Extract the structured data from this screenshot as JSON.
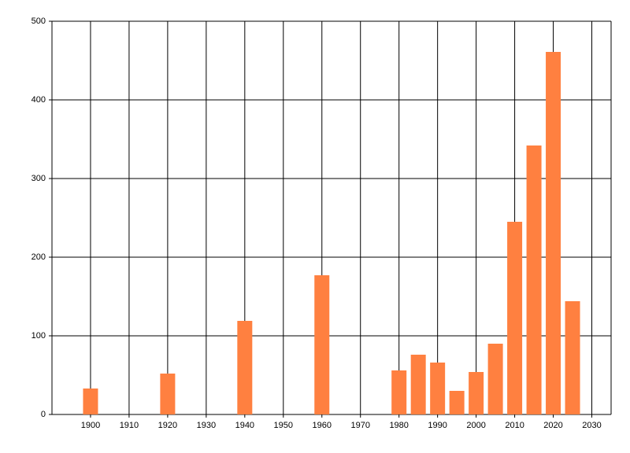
{
  "chart_data": {
    "type": "bar",
    "x": [
      1900,
      1920,
      1940,
      1960,
      1980,
      1985,
      1990,
      1995,
      2000,
      2005,
      2010,
      2015,
      2020,
      2025
    ],
    "values": [
      33,
      52,
      119,
      177,
      56,
      76,
      66,
      30,
      54,
      90,
      245,
      342,
      461,
      144
    ],
    "color": "#ff8040",
    "xlim": [
      1890,
      2035
    ],
    "xticks": [
      1900,
      1910,
      1920,
      1930,
      1940,
      1950,
      1960,
      1970,
      1980,
      1990,
      2000,
      2010,
      2020,
      2030
    ],
    "ylim": [
      0,
      500
    ],
    "yticks": [
      0,
      100,
      200,
      300,
      400,
      500
    ],
    "grid": true
  }
}
